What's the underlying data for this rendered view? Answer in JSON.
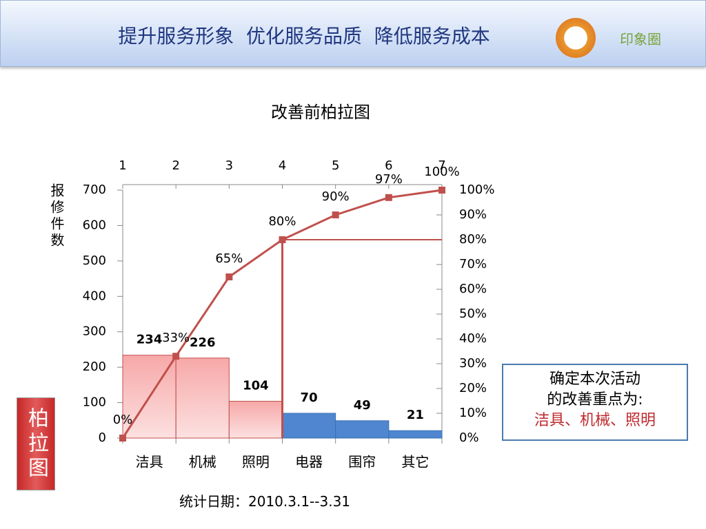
{
  "header": {
    "title": "提升服务形象  优化服务品质  降低服务成本",
    "logo_text": "印象圈"
  },
  "chart_data": {
    "type": "pareto",
    "title": "改善前柏拉图",
    "y_label": "报修件数",
    "categories": [
      "洁具",
      "机械",
      "照明",
      "电器",
      "围帘",
      "其它"
    ],
    "values": [
      234,
      226,
      104,
      70,
      49,
      21
    ],
    "colors": [
      "#f7a8a8",
      "#f7a8a8",
      "#f7a8a8",
      "#4f86cf",
      "#4f86cf",
      "#4f86cf"
    ],
    "line_values": [
      0,
      33,
      65,
      80,
      90,
      97,
      100
    ],
    "line_value_labels": [
      "0%",
      "33%",
      "65%",
      "80%",
      "90%",
      "97%",
      "100%"
    ],
    "line_color": "#c0504d",
    "ylim": [
      0,
      700
    ],
    "yticks": [
      0,
      100,
      200,
      300,
      400,
      500,
      600,
      700
    ],
    "y2lim": [
      0,
      100
    ],
    "y2ticks": [
      {
        "value": 0,
        "label": "0%"
      },
      {
        "value": 10,
        "label": "10%"
      },
      {
        "value": 20,
        "label": "20%"
      },
      {
        "value": 30,
        "label": "30%"
      },
      {
        "value": 40,
        "label": "40%"
      },
      {
        "value": 50,
        "label": "50%"
      },
      {
        "value": 60,
        "label": "60%"
      },
      {
        "value": 70,
        "label": "70%"
      },
      {
        "value": 80,
        "label": "80%"
      },
      {
        "value": 90,
        "label": "90%"
      },
      {
        "value": 100,
        "label": "100%"
      }
    ],
    "x2lim": [
      1,
      7
    ],
    "x2ticks": [
      1,
      2,
      3,
      4,
      5,
      6,
      7
    ]
  },
  "footnote": "统计日期：2010.3.1--3.31",
  "callout": {
    "lines": [
      "确定本次活动",
      "的改善重点为:"
    ],
    "highlight": "洁具、机械、照明"
  },
  "tag": "柏拉图"
}
